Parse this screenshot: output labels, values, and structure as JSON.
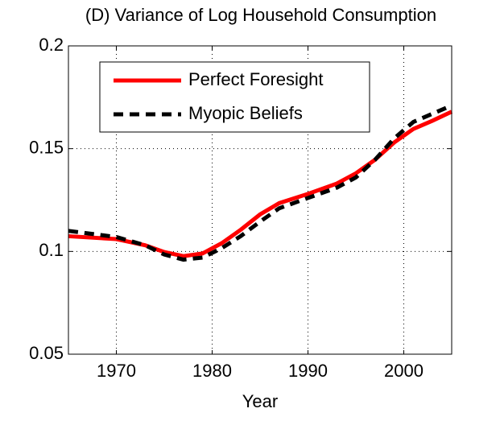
{
  "chart_data": {
    "type": "line",
    "title": "(D) Variance of Log Household Consumption",
    "xlabel": "Year",
    "x": [
      1965,
      1970,
      1973,
      1975,
      1977,
      1979,
      1981,
      1983,
      1985,
      1987,
      1990,
      1993,
      1995,
      1997,
      1999,
      2001,
      2003,
      2005
    ],
    "series": [
      {
        "name": "Perfect Foresight",
        "color": "#ff0000",
        "style": "solid",
        "values": [
          0.1074,
          0.106,
          0.103,
          0.0997,
          0.0977,
          0.099,
          0.104,
          0.1106,
          0.118,
          0.1235,
          0.128,
          0.133,
          0.138,
          0.1446,
          0.153,
          0.1596,
          0.1636,
          0.168
        ]
      },
      {
        "name": "Myopic Beliefs",
        "color": "#000000",
        "style": "dashed",
        "values": [
          0.11,
          0.107,
          0.103,
          0.0985,
          0.096,
          0.097,
          0.1016,
          0.1075,
          0.1145,
          0.121,
          0.126,
          0.131,
          0.136,
          0.1446,
          0.155,
          0.163,
          0.167,
          0.171
        ]
      }
    ],
    "xlim": [
      1965,
      2005
    ],
    "xticks": [
      1970,
      1980,
      1990,
      2000
    ],
    "ylim": [
      0.05,
      0.2
    ],
    "yticks": [
      0.05,
      0.1,
      0.15,
      0.2
    ],
    "grid": true,
    "legend": "upper-left"
  }
}
